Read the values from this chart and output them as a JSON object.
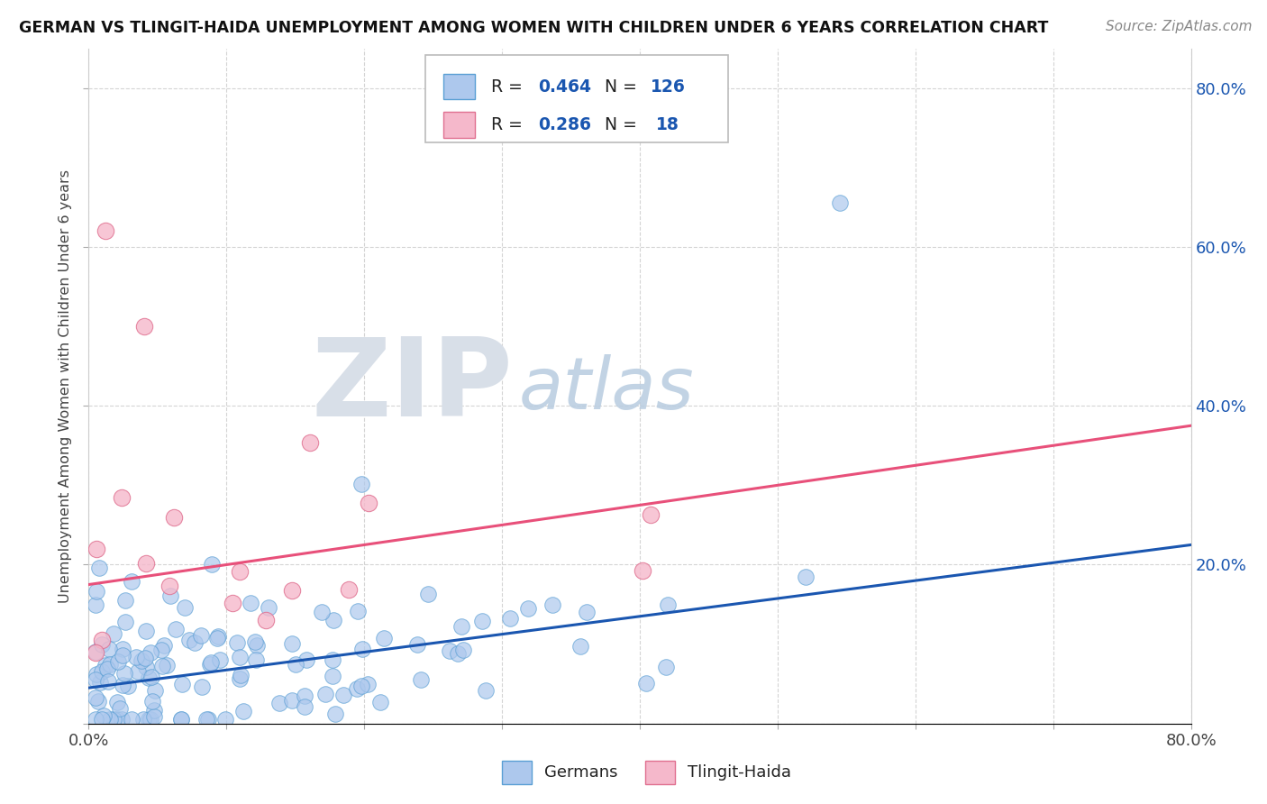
{
  "title": "GERMAN VS TLINGIT-HAIDA UNEMPLOYMENT AMONG WOMEN WITH CHILDREN UNDER 6 YEARS CORRELATION CHART",
  "source": "Source: ZipAtlas.com",
  "ylabel": "Unemployment Among Women with Children Under 6 years",
  "xlim": [
    0.0,
    0.8
  ],
  "ylim": [
    0.0,
    0.85
  ],
  "german_color": "#adc8ed",
  "german_edge": "#5a9fd4",
  "tlingit_color": "#f5b8cb",
  "tlingit_edge": "#e07090",
  "blue_line_color": "#1a56b0",
  "pink_line_color": "#e8507a",
  "watermark_zip_color": "#d8dfe8",
  "watermark_atlas_color": "#b8cce0",
  "background_color": "#ffffff",
  "grid_color": "#d0d0d0",
  "legend_text_color": "#1a56b0",
  "blue_line_start_y": 0.045,
  "blue_line_end_y": 0.225,
  "pink_line_start_y": 0.175,
  "pink_line_end_y": 0.375
}
